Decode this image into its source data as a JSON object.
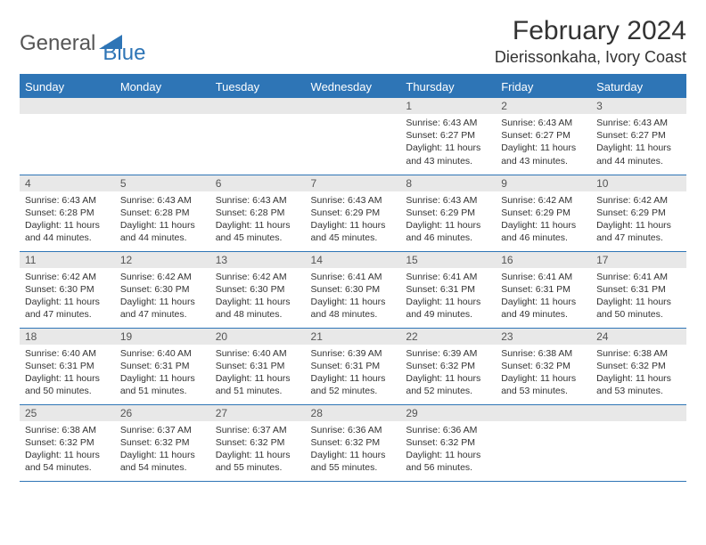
{
  "logo": {
    "text1": "General",
    "text2": "Blue"
  },
  "title": "February 2024",
  "location": "Dierissonkaha, Ivory Coast",
  "colors": {
    "header_bg": "#2e75b6",
    "header_text": "#ffffff",
    "daynum_bg": "#e8e8e8",
    "border": "#2e75b6",
    "text": "#333333"
  },
  "weekdays": [
    "Sunday",
    "Monday",
    "Tuesday",
    "Wednesday",
    "Thursday",
    "Friday",
    "Saturday"
  ],
  "weeks": [
    [
      {
        "n": "",
        "lines": []
      },
      {
        "n": "",
        "lines": []
      },
      {
        "n": "",
        "lines": []
      },
      {
        "n": "",
        "lines": []
      },
      {
        "n": "1",
        "lines": [
          "Sunrise: 6:43 AM",
          "Sunset: 6:27 PM",
          "Daylight: 11 hours and 43 minutes."
        ]
      },
      {
        "n": "2",
        "lines": [
          "Sunrise: 6:43 AM",
          "Sunset: 6:27 PM",
          "Daylight: 11 hours and 43 minutes."
        ]
      },
      {
        "n": "3",
        "lines": [
          "Sunrise: 6:43 AM",
          "Sunset: 6:27 PM",
          "Daylight: 11 hours and 44 minutes."
        ]
      }
    ],
    [
      {
        "n": "4",
        "lines": [
          "Sunrise: 6:43 AM",
          "Sunset: 6:28 PM",
          "Daylight: 11 hours and 44 minutes."
        ]
      },
      {
        "n": "5",
        "lines": [
          "Sunrise: 6:43 AM",
          "Sunset: 6:28 PM",
          "Daylight: 11 hours and 44 minutes."
        ]
      },
      {
        "n": "6",
        "lines": [
          "Sunrise: 6:43 AM",
          "Sunset: 6:28 PM",
          "Daylight: 11 hours and 45 minutes."
        ]
      },
      {
        "n": "7",
        "lines": [
          "Sunrise: 6:43 AM",
          "Sunset: 6:29 PM",
          "Daylight: 11 hours and 45 minutes."
        ]
      },
      {
        "n": "8",
        "lines": [
          "Sunrise: 6:43 AM",
          "Sunset: 6:29 PM",
          "Daylight: 11 hours and 46 minutes."
        ]
      },
      {
        "n": "9",
        "lines": [
          "Sunrise: 6:42 AM",
          "Sunset: 6:29 PM",
          "Daylight: 11 hours and 46 minutes."
        ]
      },
      {
        "n": "10",
        "lines": [
          "Sunrise: 6:42 AM",
          "Sunset: 6:29 PM",
          "Daylight: 11 hours and 47 minutes."
        ]
      }
    ],
    [
      {
        "n": "11",
        "lines": [
          "Sunrise: 6:42 AM",
          "Sunset: 6:30 PM",
          "Daylight: 11 hours and 47 minutes."
        ]
      },
      {
        "n": "12",
        "lines": [
          "Sunrise: 6:42 AM",
          "Sunset: 6:30 PM",
          "Daylight: 11 hours and 47 minutes."
        ]
      },
      {
        "n": "13",
        "lines": [
          "Sunrise: 6:42 AM",
          "Sunset: 6:30 PM",
          "Daylight: 11 hours and 48 minutes."
        ]
      },
      {
        "n": "14",
        "lines": [
          "Sunrise: 6:41 AM",
          "Sunset: 6:30 PM",
          "Daylight: 11 hours and 48 minutes."
        ]
      },
      {
        "n": "15",
        "lines": [
          "Sunrise: 6:41 AM",
          "Sunset: 6:31 PM",
          "Daylight: 11 hours and 49 minutes."
        ]
      },
      {
        "n": "16",
        "lines": [
          "Sunrise: 6:41 AM",
          "Sunset: 6:31 PM",
          "Daylight: 11 hours and 49 minutes."
        ]
      },
      {
        "n": "17",
        "lines": [
          "Sunrise: 6:41 AM",
          "Sunset: 6:31 PM",
          "Daylight: 11 hours and 50 minutes."
        ]
      }
    ],
    [
      {
        "n": "18",
        "lines": [
          "Sunrise: 6:40 AM",
          "Sunset: 6:31 PM",
          "Daylight: 11 hours and 50 minutes."
        ]
      },
      {
        "n": "19",
        "lines": [
          "Sunrise: 6:40 AM",
          "Sunset: 6:31 PM",
          "Daylight: 11 hours and 51 minutes."
        ]
      },
      {
        "n": "20",
        "lines": [
          "Sunrise: 6:40 AM",
          "Sunset: 6:31 PM",
          "Daylight: 11 hours and 51 minutes."
        ]
      },
      {
        "n": "21",
        "lines": [
          "Sunrise: 6:39 AM",
          "Sunset: 6:31 PM",
          "Daylight: 11 hours and 52 minutes."
        ]
      },
      {
        "n": "22",
        "lines": [
          "Sunrise: 6:39 AM",
          "Sunset: 6:32 PM",
          "Daylight: 11 hours and 52 minutes."
        ]
      },
      {
        "n": "23",
        "lines": [
          "Sunrise: 6:38 AM",
          "Sunset: 6:32 PM",
          "Daylight: 11 hours and 53 minutes."
        ]
      },
      {
        "n": "24",
        "lines": [
          "Sunrise: 6:38 AM",
          "Sunset: 6:32 PM",
          "Daylight: 11 hours and 53 minutes."
        ]
      }
    ],
    [
      {
        "n": "25",
        "lines": [
          "Sunrise: 6:38 AM",
          "Sunset: 6:32 PM",
          "Daylight: 11 hours and 54 minutes."
        ]
      },
      {
        "n": "26",
        "lines": [
          "Sunrise: 6:37 AM",
          "Sunset: 6:32 PM",
          "Daylight: 11 hours and 54 minutes."
        ]
      },
      {
        "n": "27",
        "lines": [
          "Sunrise: 6:37 AM",
          "Sunset: 6:32 PM",
          "Daylight: 11 hours and 55 minutes."
        ]
      },
      {
        "n": "28",
        "lines": [
          "Sunrise: 6:36 AM",
          "Sunset: 6:32 PM",
          "Daylight: 11 hours and 55 minutes."
        ]
      },
      {
        "n": "29",
        "lines": [
          "Sunrise: 6:36 AM",
          "Sunset: 6:32 PM",
          "Daylight: 11 hours and 56 minutes."
        ]
      },
      {
        "n": "",
        "lines": []
      },
      {
        "n": "",
        "lines": []
      }
    ]
  ]
}
